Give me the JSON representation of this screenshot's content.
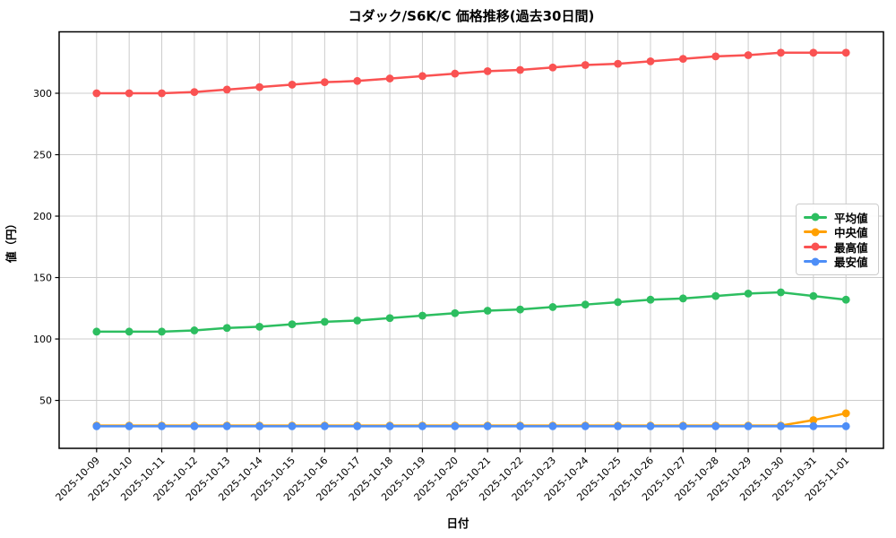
{
  "chart_data": {
    "type": "line",
    "title": "コダック/S6K/C 価格推移(過去30日間)",
    "xlabel": "日付",
    "ylabel": "値（円）",
    "x": [
      "2025-10-09",
      "2025-10-10",
      "2025-10-11",
      "2025-10-12",
      "2025-10-13",
      "2025-10-14",
      "2025-10-15",
      "2025-10-16",
      "2025-10-17",
      "2025-10-18",
      "2025-10-19",
      "2025-10-20",
      "2025-10-21",
      "2025-10-22",
      "2025-10-23",
      "2025-10-24",
      "2025-10-25",
      "2025-10-26",
      "2025-10-27",
      "2025-10-28",
      "2025-10-29",
      "2025-10-30",
      "2025-10-31",
      "2025-11-01"
    ],
    "series": [
      {
        "name": "平均値",
        "color": "#2dbe60",
        "values": [
          106,
          106,
          106,
          107,
          109,
          110,
          112,
          114,
          115,
          117,
          119,
          121,
          123,
          124,
          126,
          128,
          130,
          132,
          133,
          135,
          137,
          138,
          135,
          132
        ]
      },
      {
        "name": "中央値",
        "color": "#ffa000",
        "values": [
          29.5,
          29.5,
          29.5,
          29.5,
          29.5,
          29.5,
          29.5,
          29.5,
          29.5,
          29.5,
          29.5,
          29.5,
          29.5,
          29.5,
          29.5,
          29.5,
          29.5,
          29.5,
          29.5,
          29.5,
          29.5,
          29.5,
          34,
          39.5
        ]
      },
      {
        "name": "最高値",
        "color": "#fa5252",
        "values": [
          300,
          300,
          300,
          301,
          303,
          305,
          307,
          309,
          310,
          312,
          314,
          316,
          318,
          319,
          321,
          323,
          324,
          326,
          328,
          330,
          331,
          333,
          333,
          333
        ]
      },
      {
        "name": "最安値",
        "color": "#4d8ef7",
        "values": [
          29,
          29,
          29,
          29,
          29,
          29,
          29,
          29,
          29,
          29,
          29,
          29,
          29,
          29,
          29,
          29,
          29,
          29,
          29,
          29,
          29,
          29,
          29,
          29
        ]
      }
    ],
    "ylim": [
      11,
      350
    ],
    "yticks": [
      50,
      100,
      150,
      200,
      250,
      300
    ],
    "grid": true,
    "grid_color": "#cccccc",
    "axis_color": "#000000",
    "legend_position": "right-center",
    "marker": "circle"
  }
}
